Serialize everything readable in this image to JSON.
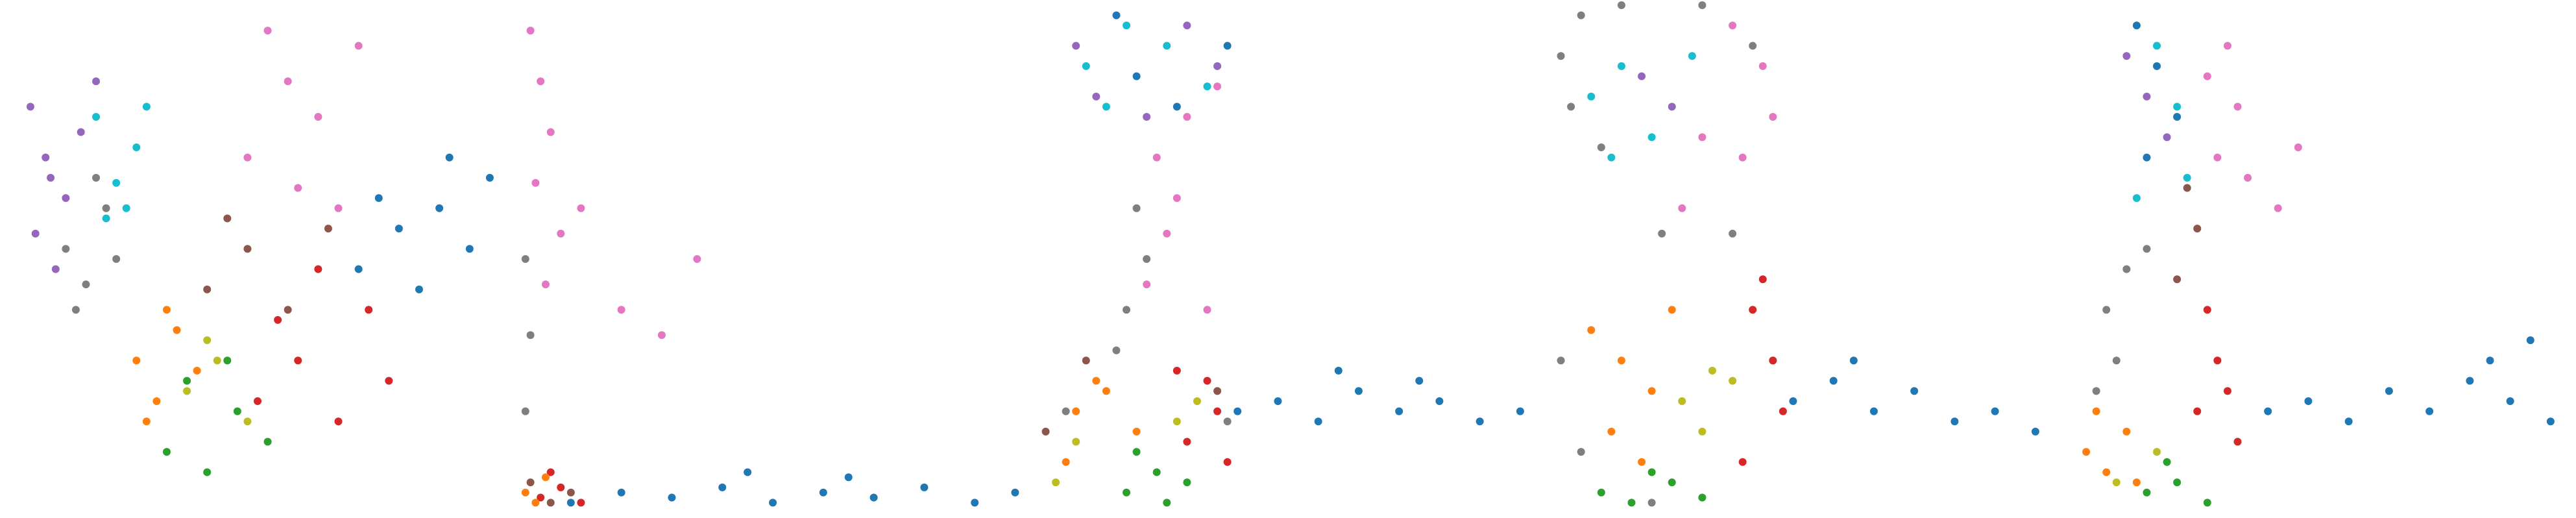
{
  "chart_data": [
    {
      "type": "scatter",
      "xlim": [
        0,
        100
      ],
      "ylim": [
        0,
        100
      ],
      "series": [
        {
          "color": "#9467bd",
          "x": [
            5,
            8,
            12,
            6,
            15,
            10,
            18,
            9
          ],
          "values": [
            80,
            70,
            62,
            55,
            75,
            48,
            85,
            66
          ]
        },
        {
          "color": "#17becf",
          "x": [
            18,
            22,
            26,
            20,
            28,
            24
          ],
          "values": [
            78,
            65,
            72,
            58,
            80,
            60
          ]
        },
        {
          "color": "#7f7f7f",
          "x": [
            12,
            16,
            20,
            14,
            22,
            18
          ],
          "values": [
            52,
            45,
            60,
            40,
            50,
            66
          ]
        },
        {
          "color": "#ff7f0e",
          "x": [
            26,
            30,
            34,
            28,
            38,
            32
          ],
          "values": [
            30,
            22,
            36,
            18,
            28,
            40
          ]
        },
        {
          "color": "#2ca02c",
          "x": [
            32,
            40,
            46,
            36,
            52,
            44
          ],
          "values": [
            12,
            8,
            20,
            26,
            14,
            30
          ]
        },
        {
          "color": "#bcbd22",
          "x": [
            36,
            42,
            48,
            40
          ],
          "values": [
            24,
            30,
            18,
            34
          ]
        },
        {
          "color": "#d62728",
          "x": [
            50,
            58,
            66,
            72,
            62,
            76,
            54
          ],
          "values": [
            22,
            30,
            18,
            40,
            48,
            26,
            38
          ]
        },
        {
          "color": "#8c564b",
          "x": [
            40,
            48,
            56,
            64,
            44
          ],
          "values": [
            44,
            52,
            40,
            56,
            58
          ]
        },
        {
          "color": "#e377c2",
          "x": [
            48,
            56,
            62,
            70,
            66,
            58,
            52
          ],
          "values": [
            70,
            85,
            78,
            92,
            60,
            64,
            95
          ]
        },
        {
          "color": "#1f77b4",
          "x": [
            70,
            78,
            86,
            92,
            96,
            82,
            74,
            88
          ],
          "values": [
            48,
            56,
            60,
            52,
            66,
            44,
            62,
            70
          ]
        }
      ]
    },
    {
      "type": "scatter",
      "xlim": [
        0,
        100
      ],
      "ylim": [
        0,
        100
      ],
      "series": [
        {
          "color": "#e377c2",
          "x": [
            2,
            4,
            6,
            3,
            8,
            5,
            12,
            20,
            28,
            35
          ],
          "values": [
            95,
            85,
            75,
            65,
            55,
            45,
            60,
            40,
            35,
            50
          ]
        },
        {
          "color": "#1f77b4",
          "x": [
            10,
            20,
            30,
            40,
            50,
            60,
            70,
            80,
            90,
            98,
            45,
            65
          ],
          "values": [
            2,
            4,
            3,
            5,
            2,
            4,
            3,
            5,
            2,
            4,
            8,
            7
          ]
        },
        {
          "color": "#d62728",
          "x": [
            4,
            8,
            12,
            6
          ],
          "values": [
            3,
            5,
            2,
            8
          ]
        },
        {
          "color": "#8c564b",
          "x": [
            2,
            6,
            10
          ],
          "values": [
            6,
            2,
            4
          ]
        },
        {
          "color": "#ff7f0e",
          "x": [
            1,
            3,
            5
          ],
          "values": [
            4,
            2,
            7
          ]
        },
        {
          "color": "#7f7f7f",
          "x": [
            1,
            2,
            1
          ],
          "values": [
            20,
            35,
            50
          ]
        }
      ]
    },
    {
      "type": "scatter",
      "xlim": [
        0,
        100
      ],
      "ylim": [
        0,
        100
      ],
      "series": [
        {
          "color": "#17becf",
          "x": [
            10,
            18,
            26,
            34,
            14
          ],
          "values": [
            88,
            96,
            92,
            84,
            80
          ]
        },
        {
          "color": "#9467bd",
          "x": [
            8,
            12,
            30,
            36,
            22
          ],
          "values": [
            92,
            82,
            96,
            88,
            78
          ]
        },
        {
          "color": "#1f77b4",
          "x": [
            16,
            28,
            38,
            20,
            40,
            48,
            56,
            64,
            72,
            80,
            88,
            96,
            60,
            76
          ],
          "values": [
            98,
            80,
            92,
            86,
            20,
            22,
            18,
            24,
            20,
            22,
            18,
            20,
            28,
            26
          ]
        },
        {
          "color": "#e377c2",
          "x": [
            30,
            36,
            24,
            26,
            22,
            28,
            34
          ],
          "values": [
            78,
            84,
            70,
            55,
            45,
            62,
            40
          ]
        },
        {
          "color": "#7f7f7f",
          "x": [
            20,
            18,
            22,
            16,
            6,
            38
          ],
          "values": [
            60,
            40,
            50,
            32,
            20,
            18
          ]
        },
        {
          "color": "#ff7f0e",
          "x": [
            8,
            14,
            20,
            6,
            12
          ],
          "values": [
            20,
            24,
            16,
            10,
            26
          ]
        },
        {
          "color": "#2ca02c",
          "x": [
            18,
            24,
            30,
            20,
            26
          ],
          "values": [
            4,
            8,
            6,
            12,
            2
          ]
        },
        {
          "color": "#d62728",
          "x": [
            30,
            36,
            34,
            38,
            28
          ],
          "values": [
            14,
            20,
            26,
            10,
            28
          ]
        },
        {
          "color": "#bcbd22",
          "x": [
            4,
            28,
            32,
            8
          ],
          "values": [
            6,
            18,
            22,
            14
          ]
        },
        {
          "color": "#8c564b",
          "x": [
            2,
            10,
            36
          ],
          "values": [
            16,
            30,
            24
          ]
        }
      ]
    },
    {
      "type": "scatter",
      "xlim": [
        0,
        100
      ],
      "ylim": [
        0,
        100
      ],
      "series": [
        {
          "color": "#7f7f7f",
          "x": [
            2,
            6,
            14,
            30,
            40,
            10,
            4,
            2,
            6,
            20,
            44,
            36,
            22
          ],
          "values": [
            90,
            98,
            100,
            100,
            92,
            72,
            80,
            30,
            12,
            2,
            30,
            55,
            55
          ]
        },
        {
          "color": "#e377c2",
          "x": [
            36,
            42,
            44,
            38,
            30,
            26
          ],
          "values": [
            96,
            88,
            78,
            70,
            74,
            60
          ]
        },
        {
          "color": "#17becf",
          "x": [
            8,
            14,
            20,
            12,
            28
          ],
          "values": [
            82,
            88,
            74,
            70,
            90
          ]
        },
        {
          "color": "#ff7f0e",
          "x": [
            8,
            14,
            20,
            12,
            24,
            18
          ],
          "values": [
            36,
            30,
            24,
            16,
            40,
            10
          ]
        },
        {
          "color": "#bcbd22",
          "x": [
            26,
            32,
            30,
            36
          ],
          "values": [
            22,
            28,
            16,
            26
          ]
        },
        {
          "color": "#d62728",
          "x": [
            40,
            44,
            46,
            38,
            42
          ],
          "values": [
            40,
            30,
            20,
            10,
            46
          ]
        },
        {
          "color": "#2ca02c",
          "x": [
            10,
            16,
            24,
            30,
            20
          ],
          "values": [
            4,
            2,
            6,
            3,
            8
          ]
        },
        {
          "color": "#9467bd",
          "x": [
            18,
            24
          ],
          "values": [
            86,
            80
          ]
        },
        {
          "color": "#1f77b4",
          "x": [
            48,
            56,
            64,
            72,
            80,
            88,
            96,
            60
          ],
          "values": [
            22,
            26,
            20,
            24,
            18,
            20,
            16,
            30
          ]
        }
      ]
    },
    {
      "type": "scatter",
      "xlim": [
        0,
        100
      ],
      "ylim": [
        0,
        100
      ],
      "series": [
        {
          "color": "#1f77b4",
          "x": [
            14,
            18,
            22,
            16,
            40,
            48,
            56,
            64,
            72,
            80,
            88,
            96,
            84,
            92
          ],
          "values": [
            96,
            88,
            78,
            70,
            20,
            22,
            18,
            24,
            20,
            26,
            22,
            18,
            30,
            34
          ]
        },
        {
          "color": "#9467bd",
          "x": [
            12,
            16,
            20
          ],
          "values": [
            90,
            82,
            74
          ]
        },
        {
          "color": "#17becf",
          "x": [
            18,
            22,
            14,
            24
          ],
          "values": [
            92,
            80,
            62,
            66
          ]
        },
        {
          "color": "#e377c2",
          "x": [
            28,
            32,
            34,
            30,
            36,
            42,
            46
          ],
          "values": [
            86,
            92,
            80,
            70,
            66,
            60,
            72
          ]
        },
        {
          "color": "#7f7f7f",
          "x": [
            8,
            12,
            16,
            10,
            6
          ],
          "values": [
            40,
            48,
            52,
            30,
            24
          ]
        },
        {
          "color": "#ff7f0e",
          "x": [
            4,
            8,
            12,
            6,
            14
          ],
          "values": [
            12,
            8,
            16,
            20,
            6
          ]
        },
        {
          "color": "#2ca02c",
          "x": [
            16,
            22,
            28,
            20
          ],
          "values": [
            4,
            6,
            2,
            10
          ]
        },
        {
          "color": "#d62728",
          "x": [
            26,
            30,
            34,
            28,
            32
          ],
          "values": [
            20,
            30,
            14,
            40,
            24
          ]
        },
        {
          "color": "#bcbd22",
          "x": [
            10,
            18
          ],
          "values": [
            6,
            12
          ]
        },
        {
          "color": "#8c564b",
          "x": [
            22,
            26,
            24
          ],
          "values": [
            46,
            56,
            64
          ]
        }
      ]
    }
  ]
}
